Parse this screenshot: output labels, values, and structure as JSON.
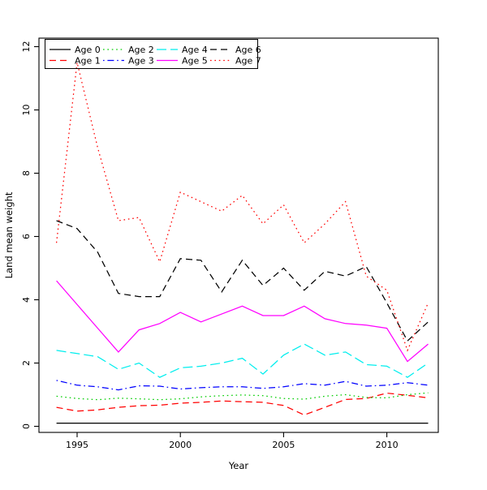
{
  "chart_data": {
    "type": "line",
    "title": "",
    "xlabel": "Year",
    "ylabel": "Land mean weight",
    "xlim": [
      1993.1,
      2013.4
    ],
    "ylim": [
      0,
      12
    ],
    "xticks": [
      1995,
      2000,
      2005,
      2010
    ],
    "yticks": [
      0,
      2,
      4,
      6,
      8,
      10,
      12
    ],
    "grid": false,
    "legend_position": "top-left-inside",
    "x": [
      1994,
      1995,
      1996,
      1997,
      1998,
      1999,
      2000,
      2001,
      2002,
      2003,
      2004,
      2005,
      2006,
      2007,
      2008,
      2009,
      2010,
      2011,
      2012
    ],
    "series": [
      {
        "name": "Age 0",
        "color": "#000000",
        "style": "solid",
        "values": [
          0.1,
          0.1,
          0.1,
          0.1,
          0.1,
          0.1,
          0.1,
          0.1,
          0.1,
          0.1,
          0.1,
          0.1,
          0.1,
          0.1,
          0.1,
          0.1,
          0.1,
          0.1,
          0.1
        ]
      },
      {
        "name": "Age 1",
        "color": "#FF0000",
        "style": "dashed",
        "values": [
          0.6,
          0.48,
          0.52,
          0.6,
          0.65,
          0.67,
          0.73,
          0.76,
          0.8,
          0.78,
          0.76,
          0.66,
          0.36,
          0.6,
          0.85,
          0.88,
          1.05,
          0.98,
          0.9
        ]
      },
      {
        "name": "Age 2",
        "color": "#00CD00",
        "style": "dotted",
        "values": [
          0.95,
          0.88,
          0.84,
          0.89,
          0.87,
          0.84,
          0.87,
          0.93,
          0.97,
          0.99,
          0.97,
          0.88,
          0.86,
          0.95,
          1.0,
          0.91,
          0.9,
          1.0,
          1.06
        ]
      },
      {
        "name": "Age 3",
        "color": "#0000FF",
        "style": "dashdot",
        "values": [
          1.45,
          1.3,
          1.25,
          1.15,
          1.28,
          1.27,
          1.18,
          1.22,
          1.25,
          1.25,
          1.2,
          1.25,
          1.35,
          1.3,
          1.42,
          1.27,
          1.3,
          1.38,
          1.3
        ]
      },
      {
        "name": "Age 4",
        "color": "#00EEEE",
        "style": "longdash",
        "values": [
          2.4,
          2.3,
          2.2,
          1.8,
          2.0,
          1.55,
          1.85,
          1.9,
          2.0,
          2.15,
          1.65,
          2.25,
          2.6,
          2.25,
          2.35,
          1.95,
          1.9,
          1.55,
          2.0
        ]
      },
      {
        "name": "Age 5",
        "color": "#FF00FF",
        "style": "solid",
        "values": [
          4.6,
          3.85,
          3.1,
          2.35,
          3.05,
          3.25,
          3.6,
          3.3,
          3.55,
          3.8,
          3.5,
          3.5,
          3.8,
          3.4,
          3.25,
          3.2,
          3.1,
          2.05,
          2.6
        ]
      },
      {
        "name": "Age 6",
        "color": "#000000",
        "style": "dashed",
        "values": [
          6.5,
          6.25,
          5.5,
          4.2,
          4.1,
          4.1,
          5.3,
          5.25,
          4.25,
          5.25,
          4.45,
          5.0,
          4.3,
          4.9,
          4.75,
          5.05,
          3.9,
          2.7,
          3.3
        ]
      },
      {
        "name": "Age 7",
        "color": "#FF0000",
        "style": "dotted",
        "values": [
          5.8,
          11.5,
          8.8,
          6.5,
          6.6,
          5.2,
          7.4,
          7.1,
          6.8,
          7.3,
          6.4,
          7.0,
          5.8,
          6.4,
          7.1,
          4.75,
          4.3,
          2.4,
          3.9
        ]
      }
    ]
  }
}
